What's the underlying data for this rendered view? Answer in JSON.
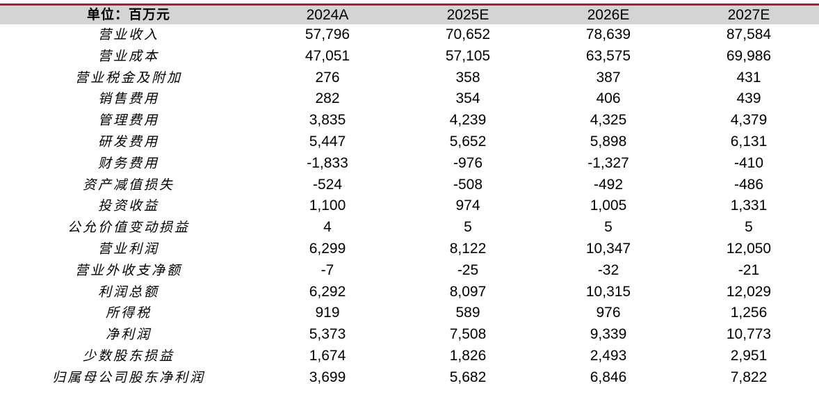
{
  "table": {
    "header": {
      "label": "单位：百万元",
      "years": [
        "2024A",
        "2025E",
        "2026E",
        "2027E"
      ]
    },
    "rows": [
      {
        "label": "营业收入",
        "values": [
          "57,796",
          "70,652",
          "78,639",
          "87,584"
        ]
      },
      {
        "label": "营业成本",
        "values": [
          "47,051",
          "57,105",
          "63,575",
          "69,986"
        ]
      },
      {
        "label": "营业税金及附加",
        "values": [
          "276",
          "358",
          "387",
          "431"
        ]
      },
      {
        "label": "销售费用",
        "values": [
          "282",
          "354",
          "406",
          "439"
        ]
      },
      {
        "label": "管理费用",
        "values": [
          "3,835",
          "4,239",
          "4,325",
          "4,379"
        ]
      },
      {
        "label": "研发费用",
        "values": [
          "5,447",
          "5,652",
          "5,898",
          "6,131"
        ]
      },
      {
        "label": "财务费用",
        "values": [
          "-1,833",
          "-976",
          "-1,327",
          "-410"
        ]
      },
      {
        "label": "资产减值损失",
        "values": [
          "-524",
          "-508",
          "-492",
          "-486"
        ]
      },
      {
        "label": "投资收益",
        "values": [
          "1,100",
          "974",
          "1,005",
          "1,331"
        ]
      },
      {
        "label": "公允价值变动损益",
        "values": [
          "4",
          "5",
          "5",
          "5"
        ]
      },
      {
        "label": "营业利润",
        "values": [
          "6,299",
          "8,122",
          "10,347",
          "12,050"
        ]
      },
      {
        "label": "营业外收支净额",
        "values": [
          "-7",
          "-25",
          "-32",
          "-21"
        ]
      },
      {
        "label": "利润总额",
        "values": [
          "6,292",
          "8,097",
          "10,315",
          "12,029"
        ]
      },
      {
        "label": "所得税",
        "values": [
          "919",
          "589",
          "976",
          "1,256"
        ]
      },
      {
        "label": "净利润",
        "values": [
          "5,373",
          "7,508",
          "9,339",
          "10,773"
        ]
      },
      {
        "label": "少数股东损益",
        "values": [
          "1,674",
          "1,826",
          "2,493",
          "2,951"
        ]
      },
      {
        "label": "归属母公司股东净利润",
        "values": [
          "3,699",
          "5,682",
          "6,846",
          "7,822"
        ]
      }
    ]
  },
  "colors": {
    "accent_line": "#c8102e",
    "header_bg": "#d4d4d4"
  }
}
